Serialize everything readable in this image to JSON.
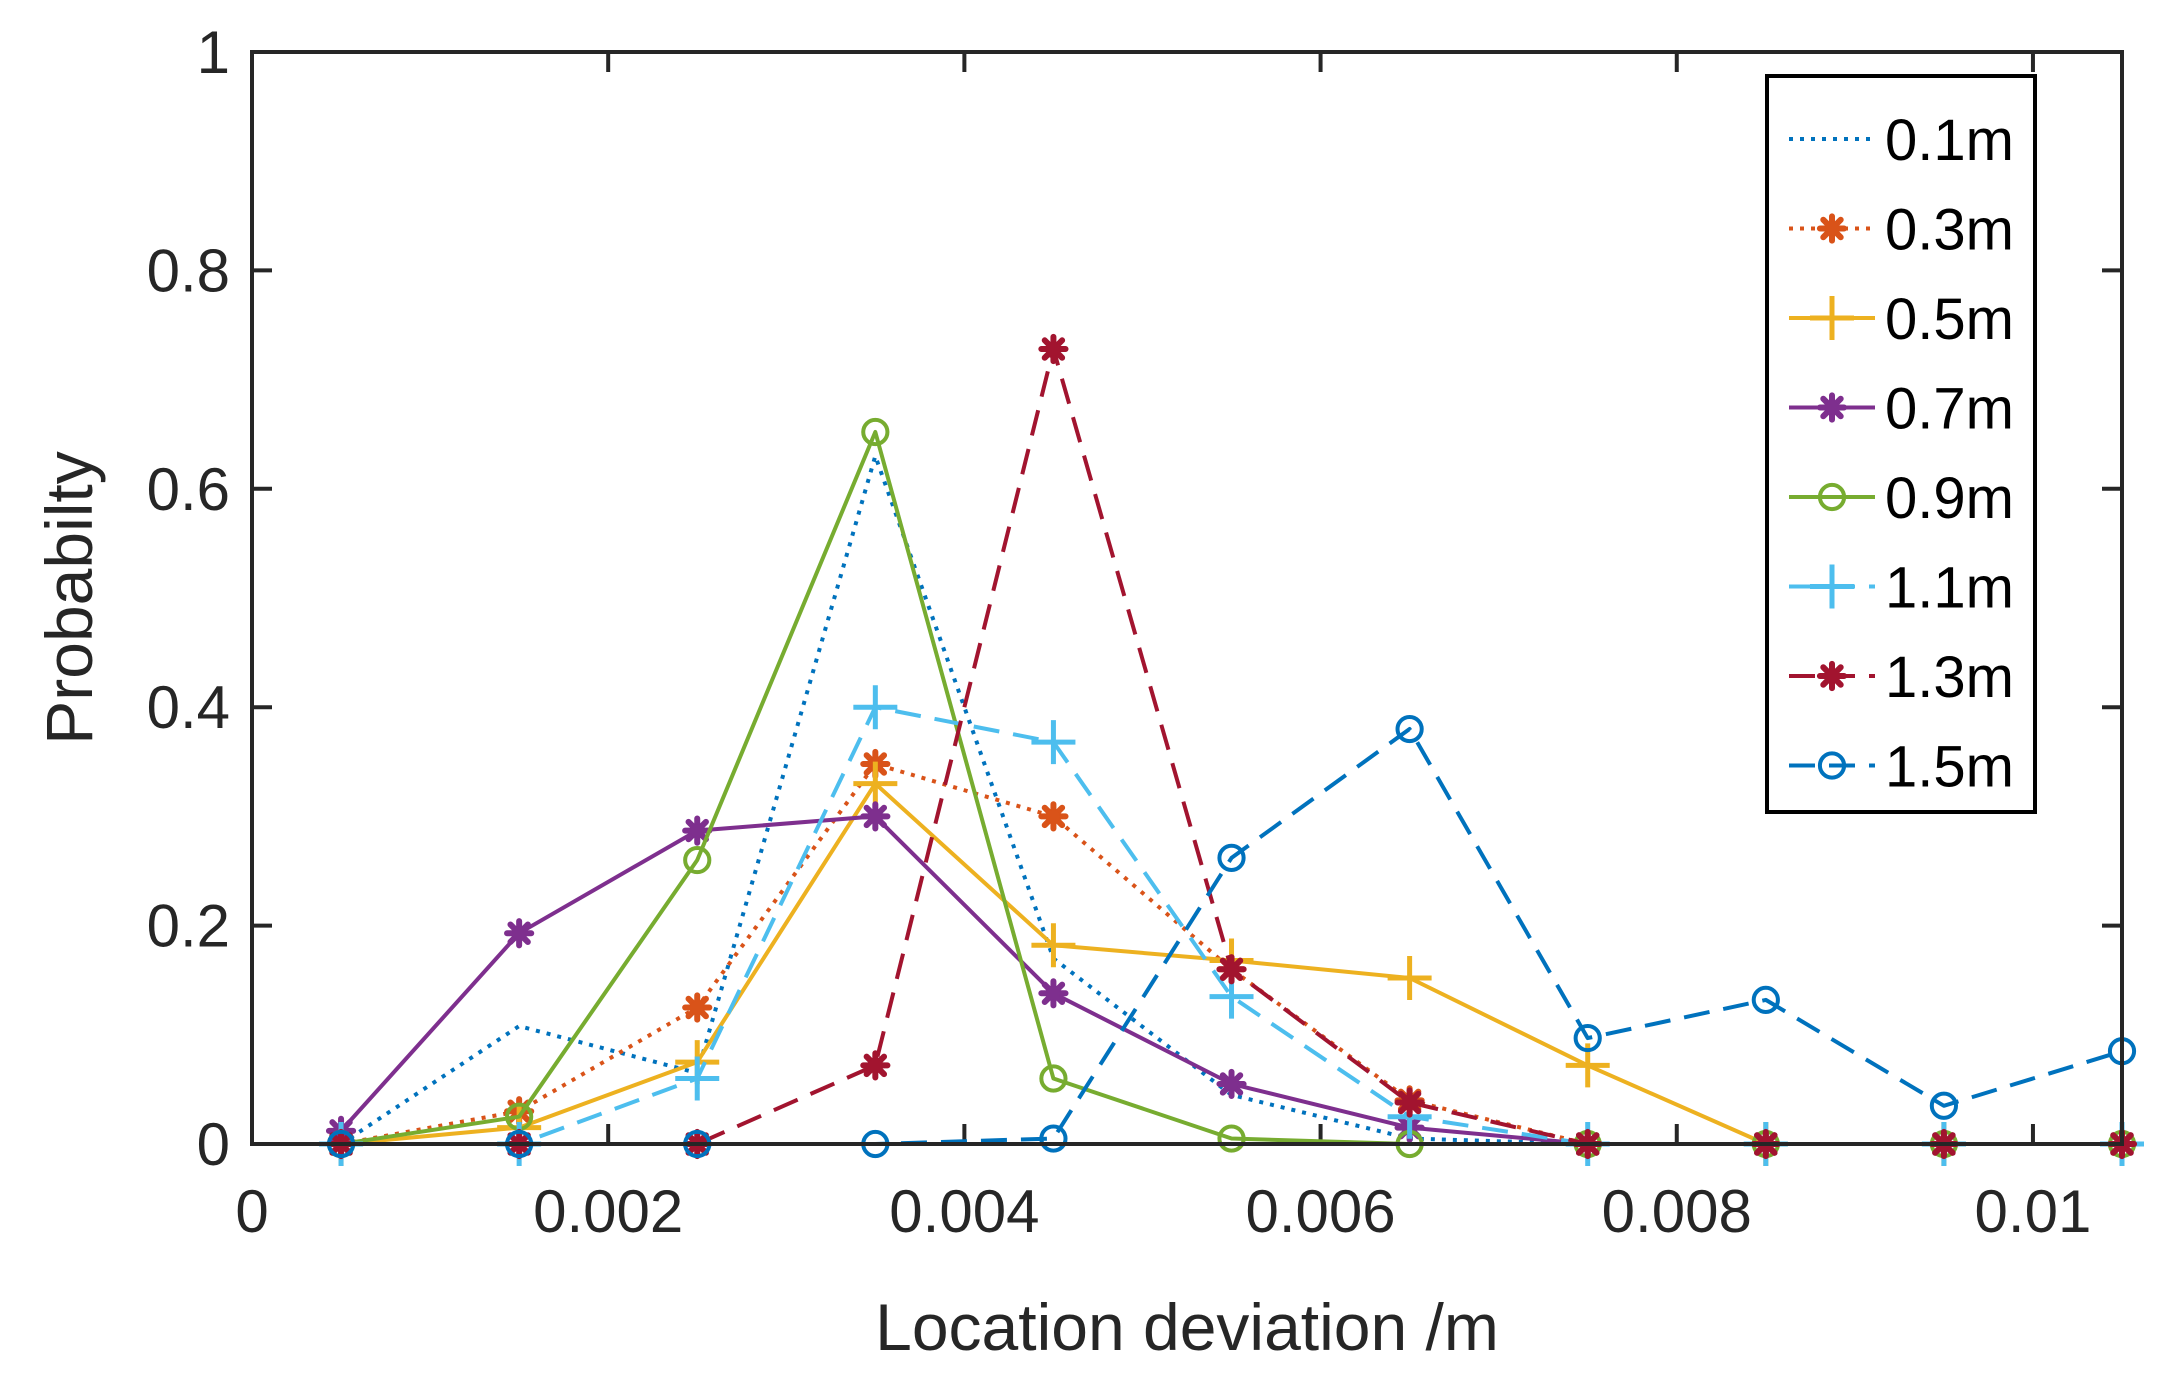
{
  "chart_data": {
    "type": "line",
    "title": "",
    "xlabel": "Location deviation /m",
    "ylabel": "Probabilty",
    "xlim": [
      0,
      0.0105
    ],
    "ylim": [
      0,
      1
    ],
    "grid": false,
    "legend_position": "top-right",
    "xticks": [
      0,
      0.002,
      0.004,
      0.006,
      0.008,
      0.01
    ],
    "xtick_labels": [
      "0",
      "0.002",
      "0.004",
      "0.006",
      "0.008",
      "0.01"
    ],
    "yticks": [
      0,
      0.2,
      0.4,
      0.6,
      0.8,
      1
    ],
    "ytick_labels": [
      "0",
      "0.2",
      "0.4",
      "0.6",
      "0.8",
      "1"
    ],
    "x": [
      0.0005,
      0.0015,
      0.0025,
      0.0035,
      0.0045,
      0.0055,
      0.0065,
      0.0075,
      0.0085,
      0.0095,
      0.0105
    ],
    "series": [
      {
        "name": "0.1m",
        "color": "#0072BD",
        "dash": "dotted",
        "marker": "none",
        "values": [
          0,
          0.108,
          0.065,
          0.63,
          0.17,
          0.045,
          0.005,
          0,
          0,
          0,
          0
        ]
      },
      {
        "name": "0.3m",
        "color": "#D95319",
        "dash": "dotted",
        "marker": "star",
        "values": [
          0,
          0.03,
          0.125,
          0.348,
          0.3,
          0.16,
          0.04,
          0,
          0,
          0,
          0
        ]
      },
      {
        "name": "0.5m",
        "color": "#EDB120",
        "dash": "solid",
        "marker": "plus",
        "values": [
          0,
          0.015,
          0.075,
          0.33,
          0.182,
          0.168,
          0.152,
          0.072,
          0,
          0,
          0
        ]
      },
      {
        "name": "0.7m",
        "color": "#7E2F8E",
        "dash": "solid",
        "marker": "star",
        "values": [
          0.012,
          0.193,
          0.287,
          0.3,
          0.138,
          0.055,
          0.015,
          0,
          0,
          0,
          0
        ]
      },
      {
        "name": "0.9m",
        "color": "#77AC30",
        "dash": "solid",
        "marker": "circle",
        "values": [
          0,
          0.025,
          0.26,
          0.652,
          0.06,
          0.005,
          0,
          0,
          0,
          0,
          0
        ]
      },
      {
        "name": "1.1m",
        "color": "#4DBEEE",
        "dash": "dashed",
        "marker": "plus",
        "values": [
          0,
          0,
          0.06,
          0.4,
          0.368,
          0.135,
          0.025,
          0,
          0,
          0,
          0
        ]
      },
      {
        "name": "1.3m",
        "color": "#A2142F",
        "dash": "dashed",
        "marker": "star",
        "values": [
          0,
          0,
          0,
          0.072,
          0.728,
          0.16,
          0.038,
          0,
          0,
          0,
          0
        ]
      },
      {
        "name": "1.5m",
        "color": "#0072BD",
        "dash": "dashed",
        "marker": "circle",
        "values": [
          0,
          0,
          0,
          0,
          0.005,
          0.262,
          0.38,
          0.097,
          0.132,
          0.035,
          0.085
        ]
      }
    ]
  }
}
